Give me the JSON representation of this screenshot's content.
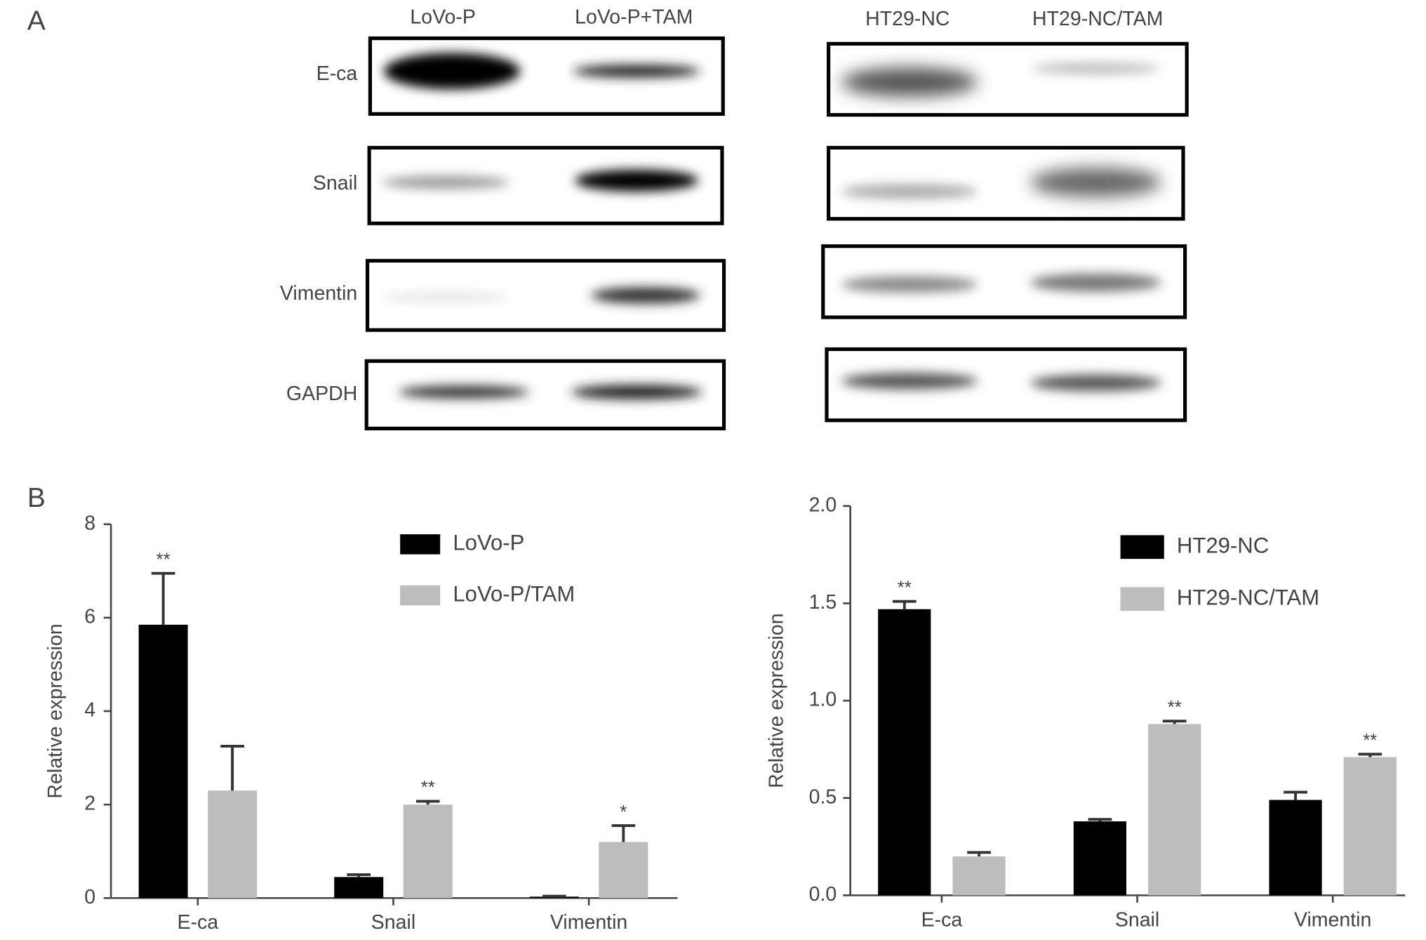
{
  "panel_a": {
    "label": "A",
    "left_columns": [
      "LoVo-P",
      "LoVo-P+TAM"
    ],
    "right_columns": [
      "HT29-NC",
      "HT29-NC/TAM"
    ],
    "rows": [
      "E-ca",
      "Snail",
      "Vimentin",
      "GAPDH"
    ]
  },
  "panel_b_label": "B",
  "chart_data": [
    {
      "type": "bar",
      "y_label": "Relative expression",
      "categories": [
        "E-ca",
        "Snail",
        "Vimentin"
      ],
      "series": [
        {
          "name": "LoVo-P",
          "color": "#000000",
          "values": [
            5.85,
            0.45,
            0.03
          ],
          "errors": [
            1.1,
            0.05,
            0.01
          ],
          "significance": [
            "**",
            null,
            null
          ]
        },
        {
          "name": "LoVo-P/TAM",
          "color": "#bdbdbd",
          "values": [
            2.3,
            2.0,
            1.2
          ],
          "errors": [
            0.95,
            0.07,
            0.35
          ],
          "significance": [
            null,
            "**",
            "*"
          ]
        }
      ],
      "ylim": [
        0,
        8
      ],
      "yticks": [
        0,
        2,
        4,
        6,
        8
      ]
    },
    {
      "type": "bar",
      "y_label": "Relative expression",
      "categories": [
        "E-ca",
        "Snail",
        "Vimentin"
      ],
      "series": [
        {
          "name": "HT29-NC",
          "color": "#000000",
          "values": [
            1.47,
            0.38,
            0.49
          ],
          "errors": [
            0.04,
            0.01,
            0.04
          ],
          "significance": [
            "**",
            null,
            null
          ]
        },
        {
          "name": "HT29-NC/TAM",
          "color": "#bdbdbd",
          "values": [
            0.2,
            0.88,
            0.71
          ],
          "errors": [
            0.02,
            0.015,
            0.015
          ],
          "significance": [
            null,
            "**",
            "**"
          ]
        }
      ],
      "ylim": [
        0,
        2.0
      ],
      "yticks": [
        {
          "value": 0,
          "label": "0.0"
        },
        0.5,
        {
          "value": 1,
          "label": "1.0"
        },
        1.5,
        {
          "value": 2,
          "label": "2.0"
        }
      ]
    }
  ]
}
